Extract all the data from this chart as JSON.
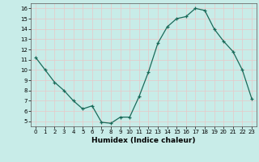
{
  "x": [
    0,
    1,
    2,
    3,
    4,
    5,
    6,
    7,
    8,
    9,
    10,
    11,
    12,
    13,
    14,
    15,
    16,
    17,
    18,
    19,
    20,
    21,
    22,
    23
  ],
  "y": [
    11.2,
    10.0,
    8.8,
    8.0,
    7.0,
    6.2,
    6.5,
    4.9,
    4.8,
    5.4,
    5.4,
    7.4,
    9.8,
    12.6,
    14.2,
    15.0,
    15.2,
    16.0,
    15.8,
    14.0,
    12.8,
    11.8,
    10.0,
    7.2
  ],
  "xlabel": "Humidex (Indice chaleur)",
  "ylim": [
    4.5,
    16.5
  ],
  "yticks": [
    5,
    6,
    7,
    8,
    9,
    10,
    11,
    12,
    13,
    14,
    15,
    16
  ],
  "xticks": [
    0,
    1,
    2,
    3,
    4,
    5,
    6,
    7,
    8,
    9,
    10,
    11,
    12,
    13,
    14,
    15,
    16,
    17,
    18,
    19,
    20,
    21,
    22,
    23
  ],
  "line_color": "#1a6b5a",
  "marker_color": "#1a6b5a",
  "bg_color": "#c8ece8",
  "grid_color": "#e8c8c8",
  "xlabel_fontsize": 6.5,
  "tick_fontsize": 5.0
}
